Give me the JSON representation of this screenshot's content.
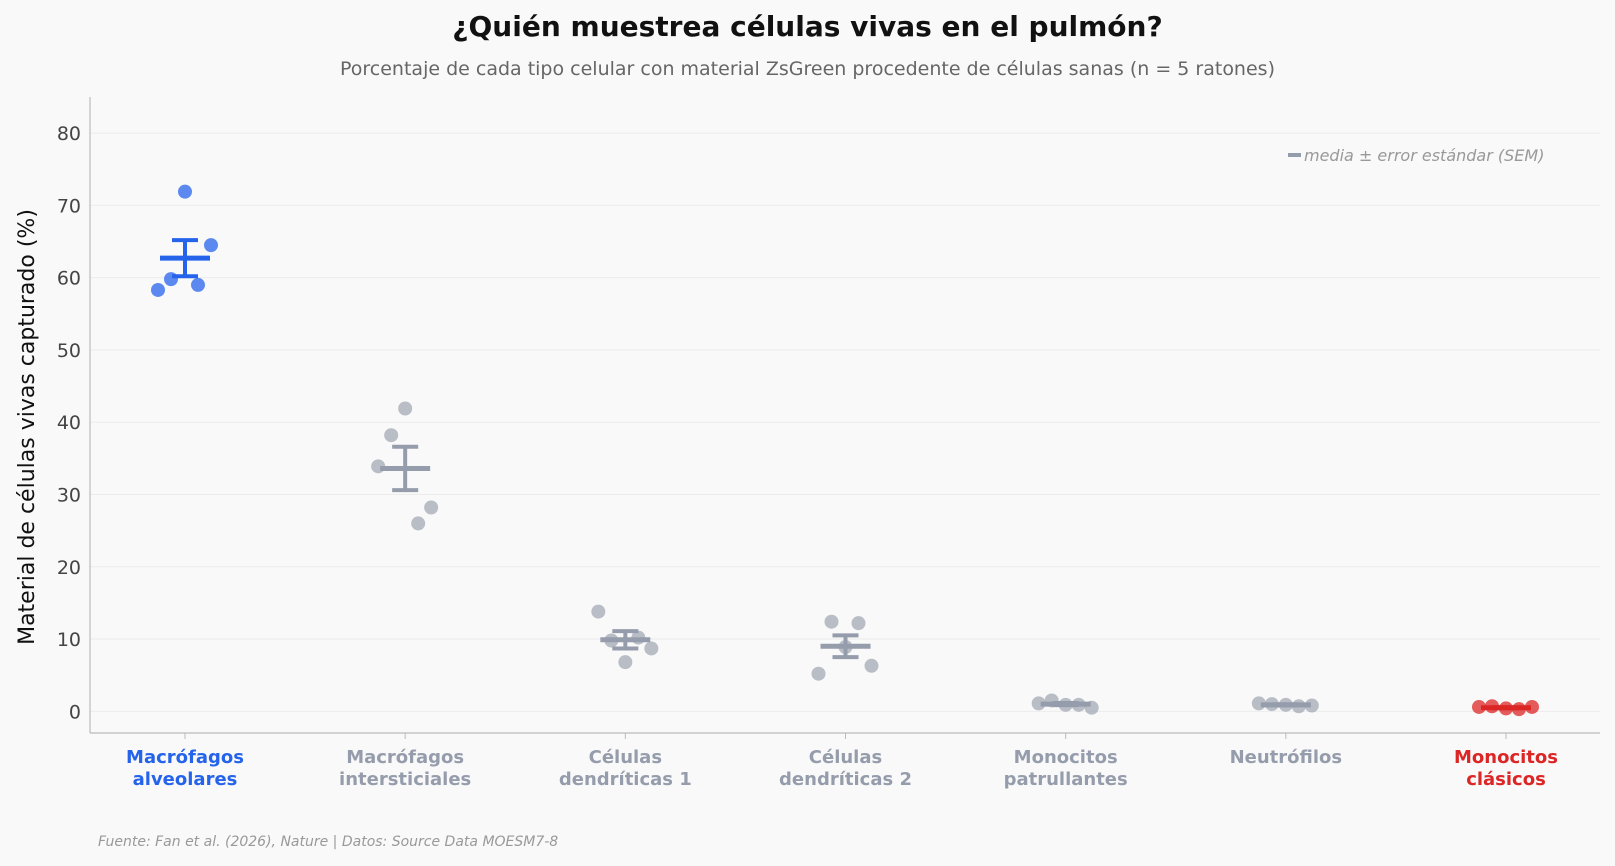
{
  "title": "¿Quién muestrea células vivas en el pulmón?",
  "subtitle": "Porcentaje de cada tipo celular con material ZsGreen procedente de células sanas (n = 5 ratones)",
  "footer": "Fuente: Fan et al. (2026), Nature | Datos: Source Data MOESM7-8",
  "legend_text": "media ± error estándar (SEM)",
  "colors": {
    "highlight_blue": "#2563eb",
    "highlight_red": "#dc2626",
    "neutral": "#959cab",
    "grid": "#ececec",
    "axis": "#bbbbbb"
  },
  "chart_data": {
    "type": "scatter",
    "ylabel": "Material de células vivas capturado (%)",
    "xlabel": "",
    "ylim": [
      -3,
      85
    ],
    "yticks": [
      0,
      10,
      20,
      30,
      40,
      50,
      60,
      70,
      80
    ],
    "grid": true,
    "legend_position": "top-right",
    "categories": [
      {
        "label_lines": [
          "Macrófagos",
          "alveolares"
        ],
        "color": "#2563eb",
        "highlight": true,
        "values": [
          58.3,
          59.8,
          71.9,
          59.0,
          64.5
        ],
        "mean": 62.7,
        "sem": 2.5
      },
      {
        "label_lines": [
          "Macrófagos",
          "intersticiales"
        ],
        "color": "#959cab",
        "highlight": false,
        "values": [
          33.9,
          38.2,
          41.9,
          26.0,
          28.2
        ],
        "mean": 33.6,
        "sem": 3.0
      },
      {
        "label_lines": [
          "Células",
          "dendríticas 1"
        ],
        "color": "#959cab",
        "highlight": false,
        "values": [
          13.8,
          9.8,
          6.8,
          10.2,
          8.7
        ],
        "mean": 9.9,
        "sem": 1.2
      },
      {
        "label_lines": [
          "Células",
          "dendríticas 2"
        ],
        "color": "#959cab",
        "highlight": false,
        "values": [
          5.2,
          12.4,
          8.9,
          12.2,
          6.3
        ],
        "mean": 9.0,
        "sem": 1.5
      },
      {
        "label_lines": [
          "Monocitos",
          "patrullantes"
        ],
        "color": "#959cab",
        "highlight": false,
        "values": [
          1.1,
          1.5,
          0.9,
          0.9,
          0.5
        ],
        "mean": 1.0,
        "sem": 0.15
      },
      {
        "label_lines": [
          "Neutrófilos"
        ],
        "color": "#959cab",
        "highlight": false,
        "values": [
          1.1,
          1.0,
          0.9,
          0.7,
          0.8
        ],
        "mean": 0.9,
        "sem": 0.07
      },
      {
        "label_lines": [
          "Monocitos",
          "clásicos"
        ],
        "color": "#dc2626",
        "highlight": true,
        "values": [
          0.6,
          0.7,
          0.4,
          0.3,
          0.6
        ],
        "mean": 0.5,
        "sem": 0.07
      }
    ]
  }
}
